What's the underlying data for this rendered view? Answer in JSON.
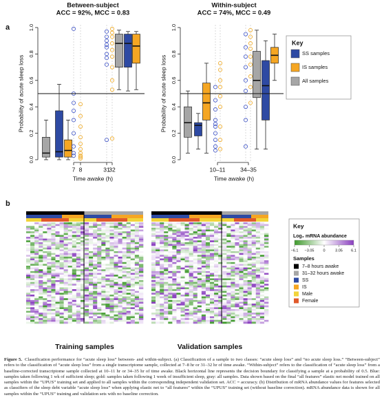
{
  "panel_labels": [
    "a",
    "b"
  ],
  "chart_data": [
    {
      "type": "box",
      "title": "Between-subject",
      "subtitle": "ACC = 92%, MCC = 0.83",
      "ylabel": "Probability of acute sleep loss",
      "xlabel": "Time awake (h)",
      "ylim": [
        0,
        1
      ],
      "yticks": [
        {
          "value": 0,
          "label": "0.0"
        },
        0.2,
        0.4,
        0.6,
        0.8,
        {
          "value": 1,
          "label": "1.0"
        }
      ],
      "threshold": 0.5,
      "groups": [
        {
          "ticks": [
            "7",
            "8"
          ],
          "boxes": [
            {
              "color": "#a6a6a6",
              "whislo": 0.0,
              "q1": 0.02,
              "med": 0.05,
              "q3": 0.17,
              "whishi": 0.3
            },
            {
              "color": "#2e4aa3",
              "whislo": 0.0,
              "q1": 0.02,
              "med": 0.06,
              "q3": 0.37,
              "whishi": 0.57
            },
            {
              "color": "#f5a623",
              "whislo": 0.0,
              "q1": 0.02,
              "med": 0.07,
              "q3": 0.15,
              "whishi": 0.3
            }
          ],
          "points": [
            {
              "color": "#3a4fc4",
              "values": [
                0.99,
                0.5,
                0.43,
                0.37,
                0.3,
                0.2,
                0.1,
                0.05,
                0.03
              ]
            },
            {
              "color": "#f0a81e",
              "values": [
                0.42,
                0.33,
                0.25,
                0.17,
                0.12,
                0.08,
                0.05,
                0.03,
                0.02,
                0.01
              ]
            }
          ]
        },
        {
          "ticks": [
            "31",
            "32"
          ],
          "boxes": [
            {
              "color": "#a6a6a6",
              "whislo": 0.53,
              "q1": 0.7,
              "med": 0.88,
              "q3": 0.95,
              "whishi": 0.98
            },
            {
              "color": "#2e4aa3",
              "whislo": 0.52,
              "q1": 0.7,
              "med": 0.88,
              "q3": 0.95,
              "whishi": 0.97
            },
            {
              "color": "#f5a623",
              "whislo": 0.53,
              "q1": 0.73,
              "med": 0.86,
              "q3": 0.95,
              "whishi": 0.97
            }
          ],
          "points": [
            {
              "color": "#3a4fc4",
              "values": [
                0.97,
                0.93,
                0.9,
                0.87,
                0.85,
                0.8,
                0.77,
                0.72,
                0.15
              ]
            },
            {
              "color": "#f0a81e",
              "values": [
                0.99,
                0.96,
                0.93,
                0.88,
                0.83,
                0.78,
                0.7,
                0.6,
                0.53,
                0.16
              ]
            }
          ]
        }
      ]
    },
    {
      "type": "box",
      "title": "Within-subject",
      "subtitle": "ACC = 74%, MCC = 0.49",
      "ylabel": "Probability of acute sleep loss",
      "xlabel": "Time awake (h)",
      "ylim": [
        0,
        1
      ],
      "yticks": [
        {
          "value": 0,
          "label": "0.0"
        },
        0.2,
        0.4,
        0.6,
        0.8,
        {
          "value": 1,
          "label": "1.0"
        }
      ],
      "threshold": 0.5,
      "groups": [
        {
          "ticks": [
            "10–11"
          ],
          "boxes": [
            {
              "color": "#a6a6a6",
              "whislo": 0.05,
              "q1": 0.17,
              "med": 0.28,
              "q3": 0.4,
              "whishi": 0.52
            },
            {
              "color": "#2e4aa3",
              "whislo": 0.08,
              "q1": 0.18,
              "med": 0.26,
              "q3": 0.28,
              "whishi": 0.35
            },
            {
              "color": "#f5a623",
              "whislo": 0.05,
              "q1": 0.3,
              "med": 0.43,
              "q3": 0.58,
              "whishi": 0.73
            }
          ],
          "points": [
            {
              "color": "#3a4fc4",
              "values": [
                0.55,
                0.45,
                0.38,
                0.3,
                0.27,
                0.25,
                0.2,
                0.15,
                0.1,
                0.07
              ]
            },
            {
              "color": "#f0a81e",
              "values": [
                0.73,
                0.68,
                0.6,
                0.55,
                0.48,
                0.4,
                0.25,
                0.15,
                0.08
              ]
            }
          ]
        },
        {
          "ticks": [
            "34–35"
          ],
          "boxes": [
            {
              "color": "#a6a6a6",
              "whislo": 0.08,
              "q1": 0.47,
              "med": 0.6,
              "q3": 0.82,
              "whishi": 0.98
            },
            {
              "color": "#2e4aa3",
              "whislo": 0.08,
              "q1": 0.3,
              "med": 0.56,
              "q3": 0.75,
              "whishi": 0.9
            },
            {
              "color": "#f5a623",
              "whislo": 0.6,
              "q1": 0.73,
              "med": 0.79,
              "q3": 0.85,
              "whishi": 0.95
            }
          ],
          "points": [
            {
              "color": "#3a4fc4",
              "values": [
                0.95,
                0.85,
                0.78,
                0.7,
                0.6,
                0.52,
                0.4,
                0.3,
                0.1
              ]
            },
            {
              "color": "#f0a81e",
              "values": [
                0.98,
                0.93,
                0.88,
                0.84,
                0.78,
                0.72,
                0.63,
                0.55,
                0.43
              ]
            }
          ]
        }
      ]
    }
  ],
  "legend_a": {
    "title": "Key",
    "entries": [
      {
        "name": "SS samples",
        "color": "#2e4aa3"
      },
      {
        "name": "IS samples",
        "color": "#f5a623"
      },
      {
        "name": "All samples",
        "color": "#a6a6a6"
      }
    ]
  },
  "heatmaps": {
    "titles": [
      "Training samples",
      "Validation samples"
    ],
    "legend": {
      "title": "Key",
      "colorbar": {
        "title": "Log₂ mRNA abundance",
        "lim": [
          -6.1,
          6.1
        ],
        "colors": [
          "#3f9a2c",
          "#ffffff",
          "#8a3fbf"
        ],
        "ticks": [
          {
            "value": -6.1,
            "label": "−6.1"
          },
          {
            "value": -3.05,
            "label": "−3.05"
          },
          0,
          3.05,
          6.1
        ]
      },
      "samples_title": "Samples",
      "samples": [
        {
          "name": "7–8 hours awake",
          "color": "#000000"
        },
        {
          "name": "31–32 hours awake",
          "color": "#a6a6a6"
        },
        {
          "name": "SS",
          "color": "#2e4aa3"
        },
        {
          "name": "IS",
          "color": "#f5a623"
        },
        {
          "name": "Male",
          "color": "#f2d43a"
        },
        {
          "name": "Female",
          "color": "#e0592a"
        }
      ]
    }
  },
  "caption": {
    "label": "Figure 5.",
    "text": "Classification performance for “acute sleep loss” between- and within-subject. (a) Classification of a sample to two classes: “acute sleep loss” and “no acute sleep loss.” “Between-subject” refers to the classification of “acute sleep loss” from a single transcriptome sample, collected at 7–8 hr or 31–32 hr of time awake. “Within-subject” refers to the classification of “acute sleep loss” from a baseline-corrected transcriptome sample collected at 10–11 hr or 34–35 hr of time awake. Black horizontal line represents the decision boundary for classifying a sample at a probability of 0.5. Blue: samples taken following 1 wk of sufficient sleep; gold: samples taken following 1 week of insufficient sleep, gray: all samples. Data shown based on the final “all features” elastic net model trained on all samples within the “UPUS” training set and applied to all samples within the corresponding independent validation set. ACC = accuracy. (b) Distribution of mRNA abundance values for features selected as classifiers of the sleep debt variable “acute sleep loss” when applying elastic net to “all features” within the “UPUS” training set (without baseline correction). mRNA abundance data is shown for all samples within the “UPUS” training and validation sets with no baseline correction."
  }
}
